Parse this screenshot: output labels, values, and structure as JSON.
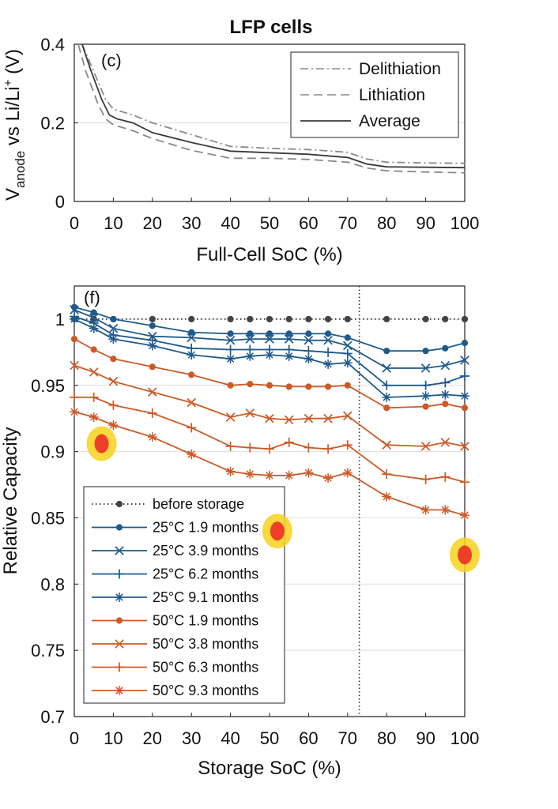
{
  "figure_title": "LFP cells",
  "chart_data": [
    {
      "type": "line",
      "panel_label": "(c)",
      "title": "LFP cells",
      "xlabel": "Full-Cell SoC (%)",
      "ylabel_main": "V",
      "ylabel_sub": "anode",
      "ylabel_rest": " vs Li/Li",
      "ylabel_sup": "+",
      "ylabel_unit": " (V)",
      "xlim": [
        0,
        100
      ],
      "ylim": [
        0,
        0.4
      ],
      "x_ticks": [
        0,
        10,
        20,
        30,
        40,
        50,
        60,
        70,
        80,
        90,
        100
      ],
      "y_ticks": [
        0,
        0.2,
        0.4
      ],
      "y_tick_labels": [
        "0",
        "0.2",
        "0.4"
      ],
      "grid": true,
      "legend_position": "top-right",
      "series": [
        {
          "name": "Delithiation",
          "style": "dashdot",
          "color": "#8a8a8a",
          "x": [
            2,
            5,
            8,
            10,
            15,
            20,
            30,
            40,
            50,
            60,
            70,
            75,
            80,
            90,
            100
          ],
          "y": [
            0.4,
            0.33,
            0.26,
            0.235,
            0.22,
            0.2,
            0.17,
            0.14,
            0.135,
            0.132,
            0.125,
            0.108,
            0.1,
            0.098,
            0.097
          ]
        },
        {
          "name": "Lithiation",
          "style": "dashed",
          "color": "#8a8a8a",
          "x": [
            1,
            3,
            6,
            8,
            10,
            15,
            20,
            30,
            40,
            50,
            60,
            70,
            75,
            80,
            90,
            100
          ],
          "y": [
            0.4,
            0.33,
            0.25,
            0.21,
            0.195,
            0.18,
            0.16,
            0.13,
            0.11,
            0.11,
            0.107,
            0.1,
            0.085,
            0.078,
            0.075,
            0.073
          ]
        },
        {
          "name": "Average",
          "style": "solid",
          "color": "#3a3a3a",
          "x": [
            2,
            4,
            7,
            9,
            11,
            15,
            20,
            30,
            40,
            50,
            60,
            70,
            75,
            80,
            90,
            100
          ],
          "y": [
            0.4,
            0.34,
            0.26,
            0.22,
            0.21,
            0.2,
            0.175,
            0.15,
            0.128,
            0.124,
            0.12,
            0.112,
            0.095,
            0.088,
            0.087,
            0.086
          ]
        }
      ]
    },
    {
      "type": "line",
      "panel_label": "(f)",
      "xlabel": "Storage SoC (%)",
      "ylabel": "Relative Capacity",
      "xlim": [
        0,
        100
      ],
      "ylim": [
        0.7,
        1.025
      ],
      "x_ticks": [
        0,
        10,
        20,
        30,
        40,
        50,
        60,
        70,
        80,
        90,
        100
      ],
      "y_ticks": [
        0.7,
        0.75,
        0.8,
        0.85,
        0.9,
        0.95,
        1.0
      ],
      "y_tick_labels": [
        "0.7",
        "0.75",
        "0.8",
        "0.85",
        "0.9",
        "0.95",
        "1"
      ],
      "grid": true,
      "vertical_reference_x": 73,
      "legend_position": "bottom-left",
      "series": [
        {
          "name": "before storage",
          "marker": "dot",
          "style": "dotted",
          "color": "#444444",
          "x": [
            0,
            5,
            10,
            20,
            30,
            40,
            45,
            50,
            55,
            60,
            65,
            70,
            80,
            90,
            95,
            100
          ],
          "y": [
            1.0,
            1.0,
            1.0,
            1.0,
            1.0,
            1.0,
            1.0,
            1.0,
            1.0,
            1.0,
            1.0,
            1.0,
            1.0,
            1.0,
            1.0,
            1.0
          ]
        },
        {
          "name": "25°C  1.9 months",
          "marker": "dot",
          "style": "solid",
          "color": "#1f5a8c",
          "x": [
            0,
            5,
            10,
            20,
            30,
            40,
            45,
            50,
            55,
            60,
            65,
            70,
            80,
            90,
            95,
            100
          ],
          "y": [
            1.009,
            1.005,
            1.0,
            0.995,
            0.99,
            0.989,
            0.989,
            0.989,
            0.989,
            0.989,
            0.989,
            0.986,
            0.976,
            0.976,
            0.978,
            0.982
          ]
        },
        {
          "name": "25°C  3.9 months",
          "marker": "x",
          "style": "solid",
          "color": "#1f5a8c",
          "x": [
            0,
            5,
            10,
            20,
            30,
            40,
            45,
            50,
            55,
            60,
            65,
            70,
            80,
            90,
            95,
            100
          ],
          "y": [
            1.007,
            1.001,
            0.993,
            0.987,
            0.986,
            0.984,
            0.985,
            0.985,
            0.985,
            0.984,
            0.984,
            0.98,
            0.963,
            0.963,
            0.965,
            0.969
          ]
        },
        {
          "name": "25°C  6.2 months",
          "marker": "plus",
          "style": "solid",
          "color": "#1f5a8c",
          "x": [
            0,
            5,
            10,
            20,
            30,
            40,
            45,
            50,
            55,
            60,
            65,
            70,
            80,
            90,
            95,
            100
          ],
          "y": [
            1.002,
            0.997,
            0.988,
            0.984,
            0.978,
            0.977,
            0.977,
            0.977,
            0.977,
            0.976,
            0.975,
            0.974,
            0.95,
            0.95,
            0.952,
            0.957
          ]
        },
        {
          "name": "25°C  9.1 months",
          "marker": "asterisk",
          "style": "solid",
          "color": "#1f5a8c",
          "x": [
            0,
            5,
            10,
            20,
            30,
            40,
            45,
            50,
            55,
            60,
            65,
            70,
            80,
            90,
            95,
            100
          ],
          "y": [
            1.0,
            0.993,
            0.985,
            0.98,
            0.973,
            0.97,
            0.972,
            0.973,
            0.972,
            0.97,
            0.966,
            0.967,
            0.941,
            0.942,
            0.943,
            0.942
          ]
        },
        {
          "name": "50°C  1.9 months",
          "marker": "dot",
          "style": "solid",
          "color": "#cd5a26",
          "x": [
            0,
            5,
            10,
            20,
            30,
            40,
            45,
            50,
            55,
            60,
            65,
            70,
            80,
            90,
            95,
            100
          ],
          "y": [
            0.985,
            0.977,
            0.97,
            0.964,
            0.958,
            0.95,
            0.951,
            0.95,
            0.949,
            0.949,
            0.949,
            0.95,
            0.933,
            0.934,
            0.936,
            0.933
          ]
        },
        {
          "name": "50°C  3.8 months",
          "marker": "x",
          "style": "solid",
          "color": "#cd5a26",
          "x": [
            0,
            5,
            10,
            20,
            30,
            40,
            45,
            50,
            55,
            60,
            65,
            70,
            80,
            90,
            95,
            100
          ],
          "y": [
            0.965,
            0.96,
            0.953,
            0.945,
            0.937,
            0.926,
            0.929,
            0.925,
            0.924,
            0.925,
            0.925,
            0.927,
            0.905,
            0.904,
            0.907,
            0.904
          ]
        },
        {
          "name": "50°C  6.3 months",
          "marker": "plus",
          "style": "solid",
          "color": "#cd5a26",
          "x": [
            0,
            5,
            10,
            20,
            30,
            40,
            45,
            50,
            55,
            60,
            65,
            70,
            80,
            90,
            95,
            100
          ],
          "y": [
            0.941,
            0.941,
            0.935,
            0.929,
            0.918,
            0.904,
            0.903,
            0.902,
            0.907,
            0.903,
            0.902,
            0.905,
            0.883,
            0.879,
            0.881,
            0.877
          ]
        },
        {
          "name": "50°C  9.3 months",
          "marker": "asterisk",
          "style": "solid",
          "color": "#cd5a26",
          "x": [
            0,
            5,
            10,
            20,
            30,
            40,
            45,
            50,
            55,
            60,
            65,
            70,
            80,
            90,
            95,
            100
          ],
          "y": [
            0.93,
            0.926,
            0.92,
            0.911,
            0.898,
            0.885,
            0.883,
            0.882,
            0.882,
            0.884,
            0.88,
            0.884,
            0.866,
            0.856,
            0.856,
            0.852
          ]
        }
      ]
    }
  ],
  "annotations": {
    "highlighter_color": "#f7d21c",
    "mark_color": "#ec2f25",
    "spots": [
      {
        "x_data": 7,
        "y_data": 0.906
      },
      {
        "x_data": 52,
        "y_data": 0.84
      },
      {
        "x_data": 100,
        "y_data": 0.822
      }
    ]
  }
}
